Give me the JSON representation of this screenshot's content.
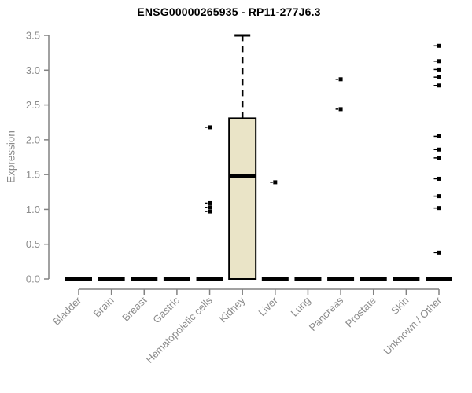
{
  "chart_data": {
    "type": "boxplot",
    "title": "ENSG00000265935 - RP11-277J6.3",
    "ylabel": "Expression",
    "xlabel": "",
    "ylim": [
      0,
      3.5
    ],
    "yticks": [
      "0.0",
      "0.5",
      "1.0",
      "1.5",
      "2.0",
      "2.5",
      "3.0",
      "3.5"
    ],
    "grid": false,
    "legend_position": "none",
    "categories": [
      "Bladder",
      "Brain",
      "Breast",
      "Gastric",
      "Hematopoietic cells",
      "Kidney",
      "Liver",
      "Lung",
      "Pancreas",
      "Prostate",
      "Skin",
      "Unknown / Other"
    ],
    "boxes": [
      {
        "category": "Bladder",
        "q1": 0,
        "median": 0,
        "q3": 0,
        "whisker_low": 0,
        "whisker_high": 0,
        "outliers": []
      },
      {
        "category": "Brain",
        "q1": 0,
        "median": 0,
        "q3": 0,
        "whisker_low": 0,
        "whisker_high": 0,
        "outliers": []
      },
      {
        "category": "Breast",
        "q1": 0,
        "median": 0,
        "q3": 0,
        "whisker_low": 0,
        "whisker_high": 0,
        "outliers": []
      },
      {
        "category": "Gastric",
        "q1": 0,
        "median": 0,
        "q3": 0,
        "whisker_low": 0,
        "whisker_high": 0,
        "outliers": []
      },
      {
        "category": "Hematopoietic cells",
        "q1": 0,
        "median": 0,
        "q3": 0,
        "whisker_low": 0,
        "whisker_high": 0,
        "outliers": [
          0.97,
          1.03,
          1.09,
          2.18
        ]
      },
      {
        "category": "Kidney",
        "q1": 0,
        "median": 1.48,
        "q3": 2.31,
        "whisker_low": 0,
        "whisker_high": 3.5,
        "outliers": []
      },
      {
        "category": "Liver",
        "q1": 0,
        "median": 0,
        "q3": 0,
        "whisker_low": 0,
        "whisker_high": 0,
        "outliers": [
          1.39
        ]
      },
      {
        "category": "Lung",
        "q1": 0,
        "median": 0,
        "q3": 0,
        "whisker_low": 0,
        "whisker_high": 0,
        "outliers": []
      },
      {
        "category": "Pancreas",
        "q1": 0,
        "median": 0,
        "q3": 0,
        "whisker_low": 0,
        "whisker_high": 0,
        "outliers": [
          2.44,
          2.87
        ]
      },
      {
        "category": "Prostate",
        "q1": 0,
        "median": 0,
        "q3": 0,
        "whisker_low": 0,
        "whisker_high": 0,
        "outliers": []
      },
      {
        "category": "Skin",
        "q1": 0,
        "median": 0,
        "q3": 0,
        "whisker_low": 0,
        "whisker_high": 0,
        "outliers": []
      },
      {
        "category": "Unknown / Other",
        "q1": 0,
        "median": 0,
        "q3": 0,
        "whisker_low": 0,
        "whisker_high": 0,
        "outliers": [
          0.38,
          1.02,
          1.19,
          1.44,
          1.74,
          1.86,
          2.05,
          2.78,
          2.9,
          3.01,
          3.13,
          3.35
        ]
      }
    ],
    "colors": {
      "background": "#FFFFFF",
      "box_fill": "#EAE4C7",
      "box_stroke": "#000000",
      "median": "#000000",
      "zero_box": "#000000",
      "whisker": "#000000",
      "outlier": "#000000",
      "axis": "#828282",
      "tick_label": "#8B8B8B",
      "title": "#000000"
    }
  }
}
